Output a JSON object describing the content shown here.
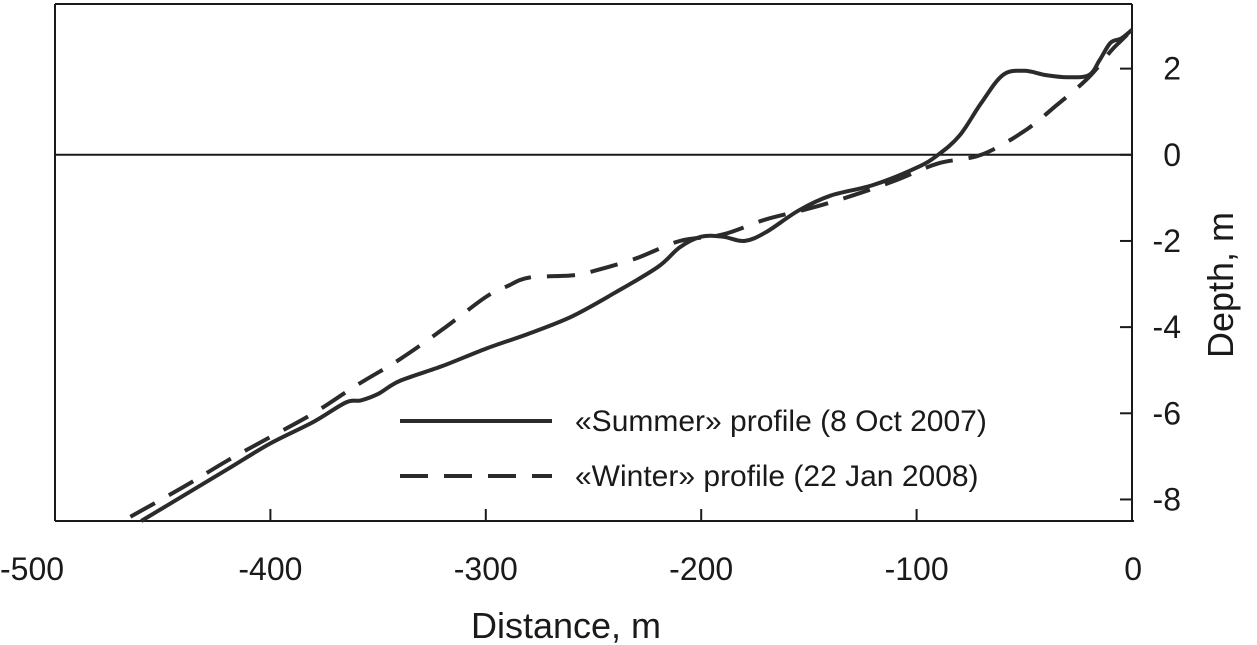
{
  "chart_data": {
    "type": "line",
    "title": "",
    "xlabel": "Distance, m",
    "ylabel": "Depth, m",
    "xlim": [
      -500,
      0
    ],
    "ylim": [
      -8.5,
      3.5
    ],
    "x_ticks": [
      -500,
      -400,
      -300,
      -200,
      -100,
      0
    ],
    "y_ticks": [
      2,
      0,
      -2,
      -4,
      -6,
      -8
    ],
    "grid": false,
    "legend_position": "bottom-right",
    "reference_lines": [
      {
        "axis": "y",
        "value": 0
      }
    ],
    "series": [
      {
        "name": "«Summer» profile (8 Oct 2007)",
        "style": "solid",
        "color": "#2b2b2b",
        "points": [
          [
            -460,
            -8.5
          ],
          [
            -440,
            -7.9
          ],
          [
            -420,
            -7.3
          ],
          [
            -400,
            -6.7
          ],
          [
            -380,
            -6.2
          ],
          [
            -365,
            -5.75
          ],
          [
            -358,
            -5.7
          ],
          [
            -350,
            -5.55
          ],
          [
            -340,
            -5.25
          ],
          [
            -320,
            -4.9
          ],
          [
            -300,
            -4.5
          ],
          [
            -280,
            -4.15
          ],
          [
            -260,
            -3.75
          ],
          [
            -240,
            -3.2
          ],
          [
            -220,
            -2.6
          ],
          [
            -210,
            -2.15
          ],
          [
            -200,
            -1.9
          ],
          [
            -190,
            -1.9
          ],
          [
            -180,
            -2.0
          ],
          [
            -170,
            -1.8
          ],
          [
            -155,
            -1.3
          ],
          [
            -140,
            -0.95
          ],
          [
            -120,
            -0.7
          ],
          [
            -100,
            -0.3
          ],
          [
            -90,
            0.0
          ],
          [
            -80,
            0.45
          ],
          [
            -70,
            1.2
          ],
          [
            -60,
            1.85
          ],
          [
            -50,
            1.95
          ],
          [
            -40,
            1.85
          ],
          [
            -30,
            1.8
          ],
          [
            -20,
            1.85
          ],
          [
            -15,
            2.2
          ],
          [
            -10,
            2.6
          ],
          [
            -5,
            2.7
          ],
          [
            0,
            2.9
          ]
        ]
      },
      {
        "name": "«Winter» profile (22 Jan 2008)",
        "style": "dashed",
        "color": "#2b2b2b",
        "points": [
          [
            -465,
            -8.4
          ],
          [
            -440,
            -7.7
          ],
          [
            -420,
            -7.1
          ],
          [
            -400,
            -6.55
          ],
          [
            -380,
            -6.0
          ],
          [
            -360,
            -5.35
          ],
          [
            -340,
            -4.75
          ],
          [
            -320,
            -4.05
          ],
          [
            -300,
            -3.3
          ],
          [
            -290,
            -3.05
          ],
          [
            -280,
            -2.85
          ],
          [
            -260,
            -2.8
          ],
          [
            -250,
            -2.7
          ],
          [
            -230,
            -2.4
          ],
          [
            -210,
            -2.0
          ],
          [
            -190,
            -1.85
          ],
          [
            -170,
            -1.5
          ],
          [
            -150,
            -1.25
          ],
          [
            -130,
            -0.95
          ],
          [
            -110,
            -0.6
          ],
          [
            -90,
            -0.2
          ],
          [
            -70,
            0.0
          ],
          [
            -50,
            0.55
          ],
          [
            -35,
            1.15
          ],
          [
            -20,
            1.8
          ],
          [
            -10,
            2.4
          ],
          [
            -5,
            2.65
          ],
          [
            0,
            2.9
          ]
        ]
      }
    ]
  }
}
